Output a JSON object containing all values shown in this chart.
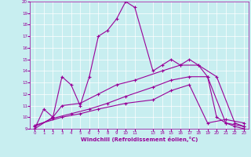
{
  "xlabel": "Windchill (Refroidissement éolien,°C)",
  "background_color": "#c8eef0",
  "line_color": "#990099",
  "xlim": [
    -0.5,
    23.5
  ],
  "ylim": [
    9,
    20
  ],
  "xticks": [
    0,
    1,
    2,
    3,
    4,
    5,
    6,
    7,
    8,
    9,
    10,
    11,
    13,
    14,
    15,
    16,
    17,
    18,
    19,
    20,
    21,
    22,
    23
  ],
  "yticks": [
    9,
    10,
    11,
    12,
    13,
    14,
    15,
    16,
    17,
    18,
    19,
    20
  ],
  "curve1_x": [
    0,
    1,
    2,
    3,
    4,
    5,
    6,
    7,
    8,
    9,
    10,
    11,
    13,
    14,
    15,
    16,
    17,
    18,
    19,
    20,
    21,
    22,
    23
  ],
  "curve1_y": [
    9.0,
    10.7,
    10.0,
    13.5,
    12.8,
    11.0,
    13.5,
    17.0,
    17.5,
    18.5,
    20.0,
    19.5,
    14.0,
    14.5,
    15.0,
    14.5,
    15.0,
    14.5,
    13.5,
    10.0,
    9.5,
    9.2,
    9.0
  ],
  "curve2_x": [
    0,
    2,
    3,
    5,
    7,
    9,
    11,
    14,
    16,
    18,
    20,
    22,
    23
  ],
  "curve2_y": [
    9.0,
    10.0,
    11.0,
    11.2,
    12.0,
    12.8,
    13.2,
    14.0,
    14.5,
    14.5,
    13.5,
    9.5,
    9.2
  ],
  "curve3_x": [
    0,
    2,
    4,
    6,
    8,
    10,
    13,
    15,
    17,
    19,
    21,
    23
  ],
  "curve3_y": [
    9.2,
    9.9,
    10.3,
    10.7,
    11.2,
    11.8,
    12.6,
    13.2,
    13.5,
    13.5,
    9.5,
    9.2
  ],
  "curve4_x": [
    0,
    3,
    5,
    7,
    10,
    13,
    15,
    17,
    19,
    21,
    23
  ],
  "curve4_y": [
    9.3,
    10.0,
    10.3,
    10.7,
    11.2,
    11.5,
    12.3,
    12.8,
    9.5,
    9.8,
    9.5
  ]
}
